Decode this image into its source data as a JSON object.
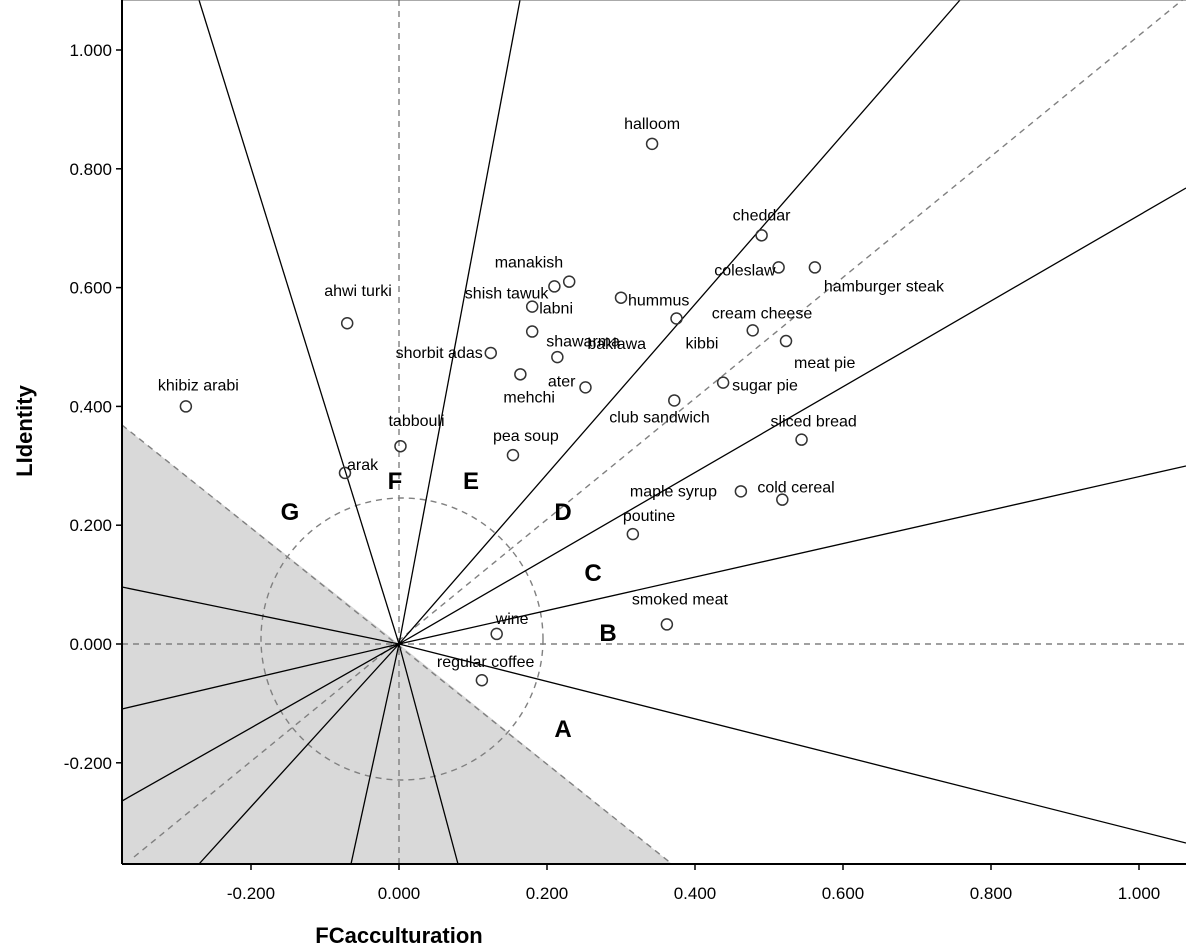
{
  "chart_data": {
    "type": "scatter",
    "xlabel": "FCacculturation",
    "ylabel": "LIdentity",
    "xlim": [
      -0.37,
      1.07
    ],
    "ylim": [
      -0.37,
      1.07
    ],
    "x_ticks": [
      {
        "value": -0.2,
        "label": "-0.200"
      },
      {
        "value": 0.0,
        "label": "0.000"
      },
      {
        "value": 0.2,
        "label": "0.200"
      },
      {
        "value": 0.4,
        "label": "0.400"
      },
      {
        "value": 0.6,
        "label": "0.600"
      },
      {
        "value": 0.8,
        "label": "0.800"
      },
      {
        "value": 1.0,
        "label": "1.000"
      }
    ],
    "y_ticks": [
      {
        "value": -0.2,
        "label": "-0.200"
      },
      {
        "value": 0.0,
        "label": "0.000"
      },
      {
        "value": 0.2,
        "label": "0.200"
      },
      {
        "value": 0.4,
        "label": "0.400"
      },
      {
        "value": 0.6,
        "label": "0.600"
      },
      {
        "value": 0.8,
        "label": "0.800"
      },
      {
        "value": 1.0,
        "label": "1.000"
      }
    ],
    "points": [
      {
        "label": "halloom",
        "x": 0.342,
        "y": 0.842
      },
      {
        "label": "cheddar",
        "x": 0.49,
        "y": 0.688
      },
      {
        "label": "coleslaw",
        "x": 0.513,
        "y": 0.634
      },
      {
        "label": "hamburger steak",
        "x": 0.562,
        "y": 0.634
      },
      {
        "label": "manakish",
        "x": 0.23,
        "y": 0.61
      },
      {
        "label": "shish tawuk",
        "x": 0.21,
        "y": 0.602
      },
      {
        "label": "hummus",
        "x": 0.3,
        "y": 0.583
      },
      {
        "label": "labni",
        "x": 0.18,
        "y": 0.568
      },
      {
        "label": "kibbi",
        "x": 0.375,
        "y": 0.548
      },
      {
        "label": "ahwi turki",
        "x": -0.07,
        "y": 0.54
      },
      {
        "label": "cream cheese",
        "x": 0.478,
        "y": 0.528
      },
      {
        "label": "shawarma",
        "x": 0.18,
        "y": 0.526
      },
      {
        "label": "meat pie",
        "x": 0.523,
        "y": 0.51
      },
      {
        "label": "shorbit adas",
        "x": 0.124,
        "y": 0.49
      },
      {
        "label": "baklawa",
        "x": 0.214,
        "y": 0.483
      },
      {
        "label": "mehchi",
        "x": 0.164,
        "y": 0.454
      },
      {
        "label": "sugar pie",
        "x": 0.438,
        "y": 0.44
      },
      {
        "label": "ater",
        "x": 0.252,
        "y": 0.432
      },
      {
        "label": "khibiz arabi",
        "x": -0.288,
        "y": 0.4
      },
      {
        "label": "club sandwich",
        "x": 0.372,
        "y": 0.41
      },
      {
        "label": "sliced bread",
        "x": 0.544,
        "y": 0.344
      },
      {
        "label": "tabbouli",
        "x": 0.002,
        "y": 0.333
      },
      {
        "label": "pea soup",
        "x": 0.154,
        "y": 0.318
      },
      {
        "label": "arak",
        "x": -0.073,
        "y": 0.288
      },
      {
        "label": "maple syrup",
        "x": 0.462,
        "y": 0.257
      },
      {
        "label": "cold cereal",
        "x": 0.518,
        "y": 0.243
      },
      {
        "label": "poutine",
        "x": 0.316,
        "y": 0.185
      },
      {
        "label": "smoked meat",
        "x": 0.362,
        "y": 0.033
      },
      {
        "label": "wine",
        "x": 0.132,
        "y": 0.017
      },
      {
        "label": "regular coffee",
        "x": 0.112,
        "y": -0.061
      }
    ],
    "regions": [
      "A",
      "B",
      "C",
      "D",
      "E",
      "F",
      "G"
    ],
    "grid": false,
    "legend": "none"
  }
}
